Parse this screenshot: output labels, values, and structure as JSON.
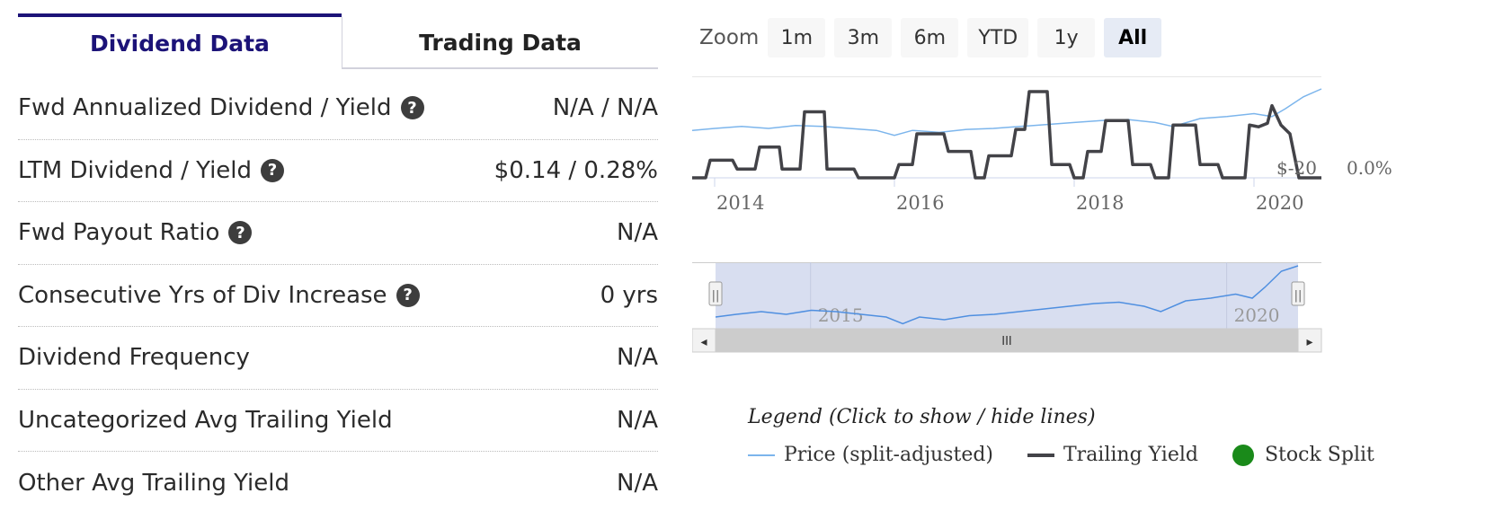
{
  "tabs": [
    {
      "label": "Dividend Data",
      "active": true
    },
    {
      "label": "Trading Data",
      "active": false
    }
  ],
  "rows": [
    {
      "label": "Fwd Annualized Dividend / Yield",
      "help": true,
      "value": "N/A / N/A"
    },
    {
      "label": "LTM Dividend / Yield",
      "help": true,
      "value": "$0.14 / 0.28%"
    },
    {
      "label": "Fwd Payout Ratio",
      "help": true,
      "value": "N/A"
    },
    {
      "label": "Consecutive Yrs of Div Increase",
      "help": true,
      "value": "0 yrs"
    },
    {
      "label": "Dividend Frequency",
      "help": false,
      "value": "N/A"
    },
    {
      "label": "Uncategorized Avg Trailing Yield",
      "help": false,
      "value": "N/A"
    },
    {
      "label": "Other Avg Trailing Yield",
      "help": false,
      "value": "N/A"
    }
  ],
  "help_glyph": "?",
  "zoom": {
    "label": "Zoom",
    "buttons": [
      "1m",
      "3m",
      "6m",
      "YTD",
      "1y",
      "All"
    ],
    "selected": "All"
  },
  "chart_data": {
    "type": "line",
    "x_ticks": [
      "2014",
      "2016",
      "2018",
      "2020"
    ],
    "x_range": [
      2013.75,
      2020.75
    ],
    "price_axis_label": "$-20",
    "yield_axis_label": "0.0%",
    "series": [
      {
        "name": "Price (split-adjusted)",
        "color": "#7cb5ec",
        "points": [
          [
            2013.75,
            0.58
          ],
          [
            2014.0,
            0.6
          ],
          [
            2014.3,
            0.62
          ],
          [
            2014.6,
            0.6
          ],
          [
            2014.9,
            0.63
          ],
          [
            2015.2,
            0.62
          ],
          [
            2015.5,
            0.6
          ],
          [
            2015.8,
            0.58
          ],
          [
            2016.0,
            0.53
          ],
          [
            2016.2,
            0.58
          ],
          [
            2016.5,
            0.56
          ],
          [
            2016.8,
            0.59
          ],
          [
            2017.1,
            0.6
          ],
          [
            2017.4,
            0.62
          ],
          [
            2017.7,
            0.64
          ],
          [
            2018.0,
            0.66
          ],
          [
            2018.3,
            0.68
          ],
          [
            2018.6,
            0.69
          ],
          [
            2018.9,
            0.66
          ],
          [
            2019.1,
            0.62
          ],
          [
            2019.4,
            0.7
          ],
          [
            2019.7,
            0.72
          ],
          [
            2020.0,
            0.75
          ],
          [
            2020.2,
            0.72
          ],
          [
            2020.35,
            0.8
          ],
          [
            2020.55,
            0.92
          ],
          [
            2020.75,
            1.0
          ]
        ]
      },
      {
        "name": "Trailing Yield",
        "color": "#434348",
        "points": [
          [
            2013.75,
            0.0
          ],
          [
            2013.9,
            0.0
          ],
          [
            2013.95,
            0.2
          ],
          [
            2014.2,
            0.2
          ],
          [
            2014.25,
            0.1
          ],
          [
            2014.45,
            0.1
          ],
          [
            2014.5,
            0.35
          ],
          [
            2014.72,
            0.35
          ],
          [
            2014.75,
            0.1
          ],
          [
            2014.95,
            0.1
          ],
          [
            2015.0,
            0.75
          ],
          [
            2015.22,
            0.75
          ],
          [
            2015.25,
            0.1
          ],
          [
            2015.55,
            0.1
          ],
          [
            2015.6,
            0.0
          ],
          [
            2016.0,
            0.0
          ],
          [
            2016.05,
            0.15
          ],
          [
            2016.2,
            0.15
          ],
          [
            2016.25,
            0.5
          ],
          [
            2016.55,
            0.5
          ],
          [
            2016.6,
            0.3
          ],
          [
            2016.85,
            0.3
          ],
          [
            2016.9,
            0.0
          ],
          [
            2017.0,
            0.0
          ],
          [
            2017.05,
            0.25
          ],
          [
            2017.3,
            0.25
          ],
          [
            2017.35,
            0.55
          ],
          [
            2017.45,
            0.55
          ],
          [
            2017.5,
            0.98
          ],
          [
            2017.7,
            0.98
          ],
          [
            2017.75,
            0.15
          ],
          [
            2017.95,
            0.15
          ],
          [
            2018.0,
            0.0
          ],
          [
            2018.1,
            0.0
          ],
          [
            2018.15,
            0.3
          ],
          [
            2018.3,
            0.3
          ],
          [
            2018.35,
            0.65
          ],
          [
            2018.6,
            0.65
          ],
          [
            2018.65,
            0.15
          ],
          [
            2018.85,
            0.15
          ],
          [
            2018.9,
            0.0
          ],
          [
            2019.05,
            0.0
          ],
          [
            2019.1,
            0.6
          ],
          [
            2019.35,
            0.6
          ],
          [
            2019.4,
            0.15
          ],
          [
            2019.6,
            0.15
          ],
          [
            2019.65,
            0.0
          ],
          [
            2019.9,
            0.0
          ],
          [
            2019.95,
            0.6
          ],
          [
            2020.05,
            0.58
          ],
          [
            2020.15,
            0.62
          ],
          [
            2020.2,
            0.82
          ],
          [
            2020.3,
            0.6
          ],
          [
            2020.4,
            0.5
          ],
          [
            2020.5,
            0.0
          ],
          [
            2020.75,
            0.0
          ]
        ]
      },
      {
        "name": "Stock Split",
        "color": "#1a8a1a",
        "points": []
      }
    ]
  },
  "navigator": {
    "ticks": [
      "2015",
      "2020"
    ],
    "scroll_glyph": "III",
    "left_arrow": "◂",
    "right_arrow": "▸",
    "handle_glyph": "||"
  },
  "legend": {
    "title": "Legend (Click to show / hide lines)"
  }
}
